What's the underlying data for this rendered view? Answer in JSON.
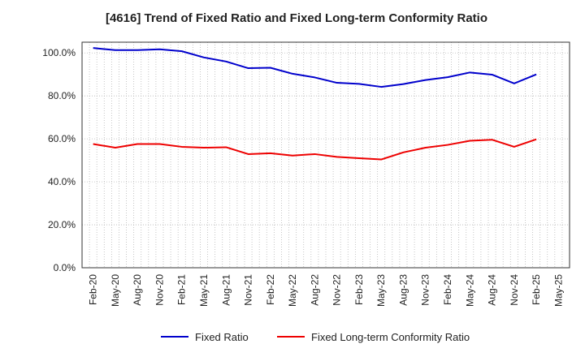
{
  "chart_data": {
    "type": "line",
    "title": "[4616]  Trend of Fixed Ratio and Fixed Long-term Conformity Ratio",
    "xlabel": "",
    "ylabel": "",
    "x": [
      "Feb-20",
      "May-20",
      "Aug-20",
      "Nov-20",
      "Feb-21",
      "May-21",
      "Aug-21",
      "Nov-21",
      "Feb-22",
      "May-22",
      "Aug-22",
      "Nov-22",
      "Feb-23",
      "May-23",
      "Aug-23",
      "Nov-23",
      "Feb-24",
      "May-24",
      "Aug-24",
      "Nov-24",
      "Feb-25"
    ],
    "x_tick_labels": [
      "Feb-20",
      "May-20",
      "Aug-20",
      "Nov-20",
      "Feb-21",
      "May-21",
      "Aug-21",
      "Nov-21",
      "Feb-22",
      "May-22",
      "Aug-22",
      "Nov-22",
      "Feb-23",
      "May-23",
      "Aug-23",
      "Nov-23",
      "Feb-24",
      "May-24",
      "Aug-24",
      "Nov-24",
      "Feb-25",
      "May-25"
    ],
    "y_tick_labels": [
      "0.0%",
      "20.0%",
      "40.0%",
      "60.0%",
      "80.0%",
      "100.0%"
    ],
    "y_ticks": [
      0,
      20,
      40,
      60,
      80,
      100
    ],
    "ylim": [
      0,
      105
    ],
    "grid": "dotted",
    "legend_position": "bottom",
    "series": [
      {
        "name": "Fixed Ratio",
        "color": "#0000cc",
        "values": [
          102.3,
          101.3,
          101.3,
          101.7,
          100.8,
          97.9,
          96.0,
          92.9,
          93.1,
          90.3,
          88.6,
          86.1,
          85.6,
          84.2,
          85.5,
          87.4,
          88.7,
          90.9,
          89.9,
          85.8,
          90.0
        ]
      },
      {
        "name": "Fixed Long-term Conformity Ratio",
        "color": "#ee0000",
        "values": [
          57.6,
          55.9,
          57.6,
          57.6,
          56.3,
          55.9,
          56.1,
          52.9,
          53.3,
          52.2,
          52.9,
          51.6,
          51.0,
          50.4,
          53.7,
          55.9,
          57.2,
          59.1,
          59.6,
          56.3,
          59.8
        ]
      }
    ]
  }
}
